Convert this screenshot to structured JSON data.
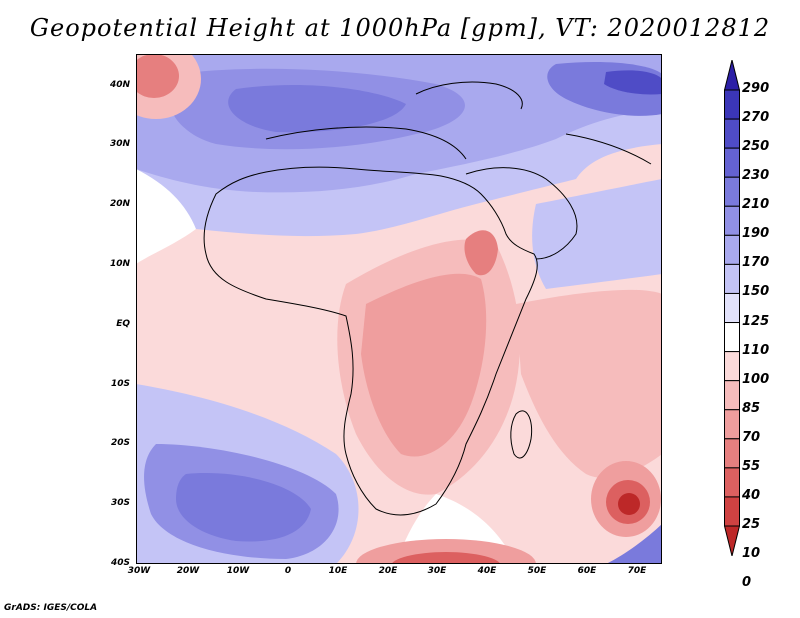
{
  "title": "Geopotential Height at 1000hPa [gpm], VT: 2020012812",
  "credit": "GrADS: IGES/COLA",
  "map": {
    "projection": "lat-lon",
    "lon_range": [
      -30,
      75
    ],
    "lat_range": [
      -40,
      45
    ],
    "lat_ticks": [
      "40N",
      "30N",
      "20N",
      "10N",
      "EQ",
      "10S",
      "20S",
      "30S",
      "40S"
    ],
    "lon_ticks": [
      "30W",
      "20W",
      "10W",
      "0",
      "10E",
      "20E",
      "30E",
      "40E",
      "50E",
      "60E",
      "70E"
    ]
  },
  "colorbar": {
    "levels": [
      "290",
      "270",
      "250",
      "230",
      "210",
      "190",
      "170",
      "150",
      "125",
      "110",
      "100",
      "85",
      "70",
      "55",
      "40",
      "25",
      "10",
      "0"
    ],
    "colors": [
      "#2c1fa6",
      "#3b36b8",
      "#4f4cc6",
      "#6462d2",
      "#7a7adc",
      "#9190e5",
      "#a9a9ee",
      "#c4c4f6",
      "#e2e2fb",
      "#ffffff",
      "#fbdada",
      "#f6bcbc",
      "#ef9e9e",
      "#e67f7f",
      "#dc6060",
      "#cf4242",
      "#bd2828"
    ]
  },
  "colors": {
    "background": "#ffffff",
    "coast": "#000000"
  }
}
